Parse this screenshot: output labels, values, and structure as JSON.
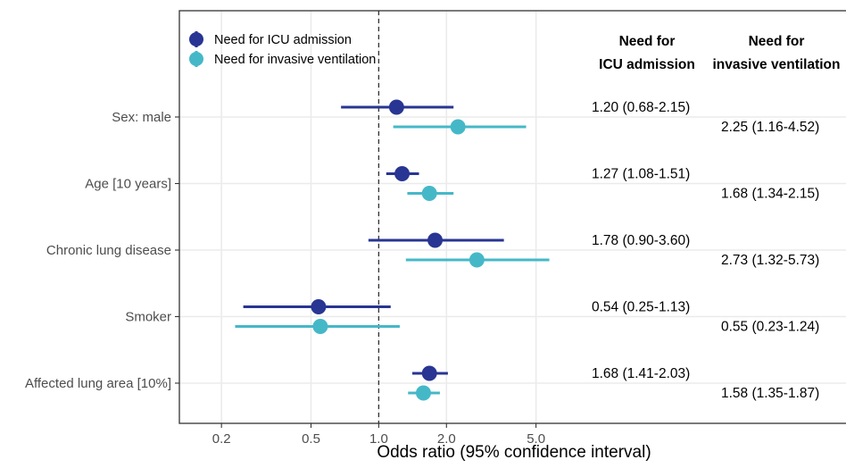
{
  "chart_data": {
    "type": "forest",
    "xlabel": "Odds ratio (95% confidence interval)",
    "x_scale": "log",
    "xlim": [
      0.13,
      8.6
    ],
    "xticks": [
      {
        "value": 0.2,
        "label": "0.2"
      },
      {
        "value": 0.5,
        "label": "0.5"
      },
      {
        "value": 1.0,
        "label": "1.0"
      },
      {
        "value": 2.0,
        "label": "2.0"
      },
      {
        "value": 5.0,
        "label": "5.0"
      }
    ],
    "reference_line": 1.0,
    "grid": true,
    "legend_position": "top-left",
    "categories": [
      "Sex: male",
      "Age [10 years]",
      "Chronic lung disease",
      "Smoker",
      "Affected lung area [10%]"
    ],
    "column_headers": [
      {
        "line1": "Need for",
        "line2": "ICU admission"
      },
      {
        "line1": "Need for",
        "line2": "invasive ventilation"
      }
    ],
    "series": [
      {
        "name": "Need for ICU admission",
        "color": "#283593",
        "estimates": [
          1.2,
          1.27,
          1.78,
          0.54,
          1.68
        ],
        "lower": [
          0.68,
          1.08,
          0.9,
          0.25,
          1.41
        ],
        "upper": [
          2.15,
          1.51,
          3.6,
          1.13,
          2.03
        ],
        "labels": [
          "1.20 (0.68-2.15)",
          "1.27 (1.08-1.51)",
          "1.78 (0.90-3.60)",
          "0.54 (0.25-1.13)",
          "1.68 (1.41-2.03)"
        ]
      },
      {
        "name": "Need for invasive ventilation",
        "color": "#45B8C8",
        "estimates": [
          2.25,
          1.68,
          2.73,
          0.55,
          1.58
        ],
        "lower": [
          1.16,
          1.34,
          1.32,
          0.23,
          1.35
        ],
        "upper": [
          4.52,
          2.15,
          5.73,
          1.24,
          1.87
        ],
        "labels": [
          "2.25 (1.16-4.52)",
          "1.68 (1.34-2.15)",
          "2.73 (1.32-5.73)",
          "0.55 (0.23-1.24)",
          "1.58 (1.35-1.87)"
        ]
      }
    ]
  }
}
